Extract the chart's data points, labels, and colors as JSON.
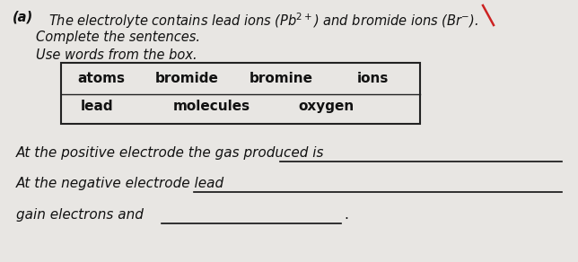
{
  "bg_color": "#e8e6e3",
  "text_color": "#111111",
  "label_a": "(a)",
  "line1_pre": "The electrolyte contains lead ions (Pb",
  "line1_sup1": "2+",
  "line1_mid": ") and bromide ions (Br",
  "line1_sup2": "−",
  "line1_end": ").",
  "line2": "Complete the sentences.",
  "line3": "Use words from the box.",
  "box_words_row1": [
    "atoms",
    "bromide",
    "bromine",
    "ions"
  ],
  "box_words_row2": [
    "lead",
    "molecules",
    "oxygen"
  ],
  "sentence1_pre": "At the positive electrode the gas produced is",
  "sentence2_pre": "At the negative electrode lead",
  "sentence3_pre": "gain electrons and",
  "font_size_header": 10.5,
  "font_size_box": 11,
  "font_size_sentence": 11
}
